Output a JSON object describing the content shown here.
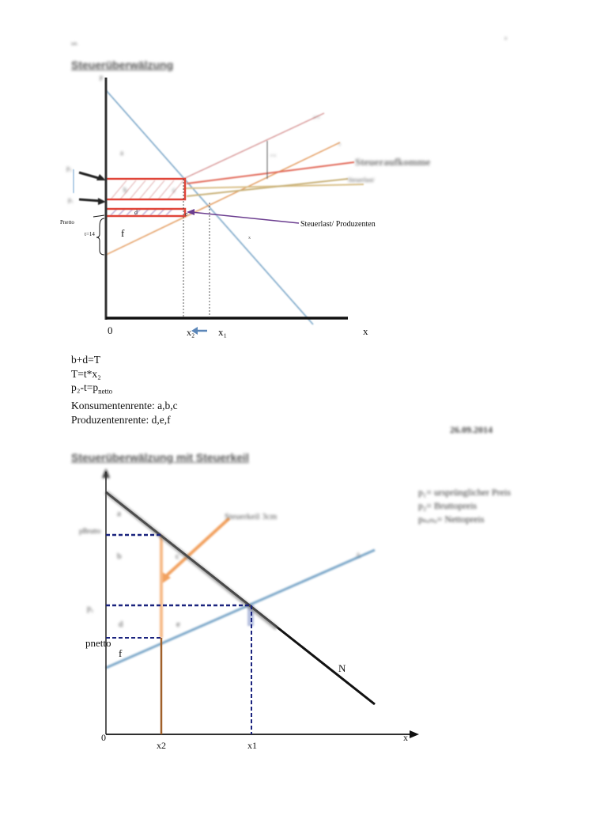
{
  "header": {
    "left_mark": "tab.",
    "right_mark": "a"
  },
  "section1": {
    "title": "Steuerüberwälzung",
    "diagram": {
      "axis_p": "p",
      "axis_x": "x",
      "origin": "0",
      "tick_x2": "x₂",
      "tick_x1": "x₁",
      "label_p2": "p₂",
      "label_p1": "p₁",
      "label_pnetto": "Pnetto",
      "label_t": "t=14",
      "area_a": "a",
      "area_b": "b",
      "area_c": "c",
      "area_d": "d",
      "area_e": "e",
      "area_f": "f",
      "curve_upper": "x+t",
      "curve_mid": "x",
      "curve_demand": "x",
      "label_t_small": "t=4",
      "note_steueraufkommen": "Steueraufkomme",
      "note_steuerlast_k": "Steuerlast/",
      "note_steuerlast_p": "Steuerlast/ Produzenten"
    },
    "equations": [
      "b+d=T",
      "T=t*x₂",
      "p₂-t=p",
      "Konsumentenrente: a,b,c",
      "Produzentenrente: d,e,f"
    ],
    "eq_sub_netto": "netto",
    "date": "26.09.2014"
  },
  "section2": {
    "title": "Steuerüberwälzung mit Steuerkeil",
    "diagram": {
      "origin": "0",
      "axis_x": "x",
      "tick_x2": "x2",
      "tick_x1": "x1",
      "label_pbrutto": "pBrutto",
      "label_p1": "p₁",
      "label_pnetto": "pnetto",
      "area_a": "a",
      "area_b": "b",
      "area_c": "c",
      "area_d": "d",
      "area_e": "e",
      "area_f": "f",
      "curve_n": "N",
      "curve_a": "A",
      "wedge_label": "Steuerkeil 3cm"
    },
    "legend": [
      "p₁= ursprünglicher Preis",
      "p₂= Bruttopreis",
      "pₙₑₜₜₒ= Nettopreis"
    ]
  },
  "colors": {
    "axis": "#333333",
    "tax_box": "#e0463a",
    "demand": "#7aa6c8",
    "supply_orange": "#e39a5c",
    "supply_tan": "#d9c08a",
    "supply_pink": "#d99a9a",
    "purple_arrow": "#6b3d8f",
    "steel_arrow": "#5b86b8",
    "dashed_blue": "#1a237e",
    "brown_line": "#a0602a",
    "wedge_orange": "#f2a15f"
  }
}
